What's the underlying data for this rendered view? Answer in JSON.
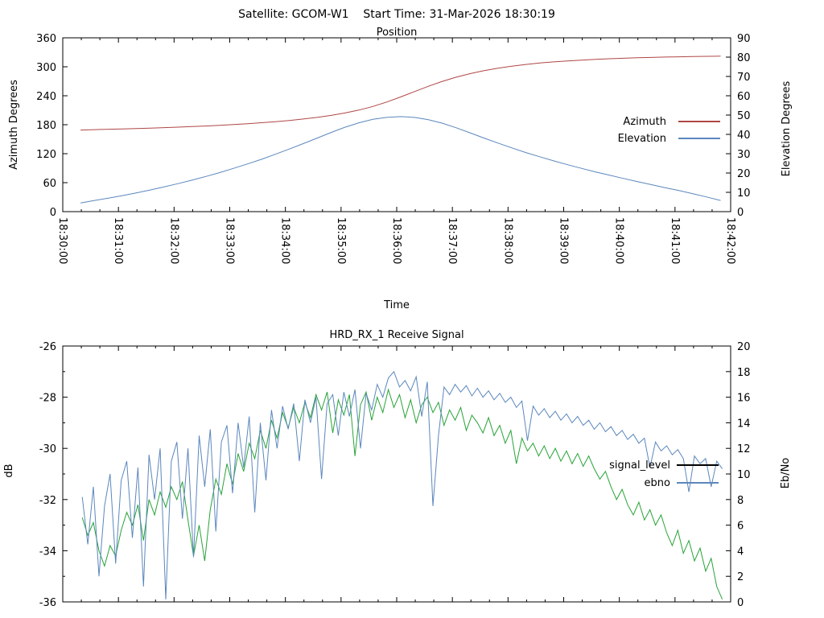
{
  "header": {
    "title": "Satellite: GCOM-W1    Start Time: 31-Mar-2026 18:30:19"
  },
  "chart_data": [
    {
      "type": "line",
      "title": "Position",
      "xlabel": "Time",
      "ylabel": "Azimuth Degrees",
      "y2label": "Elevation Degrees",
      "x_tick_labels": [
        "18:30:00",
        "18:31:00",
        "18:32:00",
        "18:33:00",
        "18:34:00",
        "18:35:00",
        "18:36:00",
        "18:37:00",
        "18:38:00",
        "18:39:00",
        "18:40:00",
        "18:41:00",
        "18:42:00"
      ],
      "x_range_minutes": [
        0,
        12
      ],
      "x_minor_per_major": 3,
      "y_range": [
        0,
        360
      ],
      "y_tick_step": 60,
      "y2_range": [
        0,
        90
      ],
      "y2_tick_step": 10,
      "grid": false,
      "legend_position": "right-middle",
      "legend": [
        {
          "label": "Azimuth",
          "color": "#b04646"
        },
        {
          "label": "Elevation",
          "color": "#5b87bd"
        }
      ],
      "series": [
        {
          "name": "Azimuth",
          "axis": "y1",
          "color": "#b04646",
          "t0": 0.32,
          "dt": 0.25,
          "values": [
            169.0,
            169.8,
            170.6,
            171.3,
            172.1,
            173.0,
            174.0,
            175.0,
            176.2,
            177.4,
            178.8,
            180.4,
            182.2,
            184.2,
            186.4,
            188.9,
            191.8,
            195.2,
            199.3,
            204.3,
            210.4,
            217.9,
            227.0,
            237.5,
            248.7,
            259.7,
            269.8,
            278.5,
            285.9,
            292.1,
            297.2,
            301.4,
            304.9,
            307.8,
            310.2,
            312.2,
            313.9,
            315.4,
            316.6,
            317.7,
            318.6,
            319.4,
            320.1,
            320.7,
            321.2,
            321.6,
            322.0
          ]
        },
        {
          "name": "Elevation",
          "axis": "y2",
          "color": "#5b87bd",
          "t0": 0.32,
          "dt": 0.25,
          "values": [
            4.5,
            5.8,
            7.0,
            8.3,
            9.7,
            11.2,
            12.8,
            14.5,
            16.3,
            18.2,
            20.2,
            22.4,
            24.7,
            27.1,
            29.7,
            32.4,
            35.2,
            38.1,
            41.0,
            43.7,
            46.0,
            47.8,
            48.8,
            49.2,
            48.8,
            47.6,
            45.8,
            43.4,
            40.8,
            38.1,
            35.5,
            33.0,
            30.6,
            28.4,
            26.3,
            24.3,
            22.4,
            20.6,
            18.9,
            17.2,
            15.6,
            14.0,
            12.4,
            10.9,
            9.3,
            7.6,
            5.8
          ]
        }
      ]
    },
    {
      "type": "line",
      "title": "HRD_RX_1 Receive Signal",
      "xlabel": "",
      "ylabel": "dB",
      "y2label": "Eb/No",
      "x_tick_labels": [],
      "x_range_minutes": [
        0,
        12
      ],
      "x_minor_per_major": 3,
      "y_range": [
        -36,
        -26
      ],
      "y_tick_step": 2,
      "y_minor_step": 1,
      "y2_range": [
        0,
        20
      ],
      "y2_tick_step": 2,
      "grid": false,
      "legend_position": "right-middle",
      "legend": [
        {
          "label": "signal_level",
          "color": "#000000"
        },
        {
          "label": "ebno",
          "color": "#5b87bd"
        }
      ],
      "series": [
        {
          "name": "signal_level",
          "axis": "y1",
          "color": "#27a337",
          "t0": 0.35,
          "dt": 0.1,
          "values": [
            -32.7,
            -33.4,
            -32.9,
            -34.0,
            -34.6,
            -33.8,
            -34.2,
            -33.2,
            -32.5,
            -33.0,
            -32.2,
            -33.6,
            -32.0,
            -32.6,
            -31.7,
            -32.3,
            -31.5,
            -32.0,
            -31.3,
            -32.8,
            -34.2,
            -33.0,
            -34.4,
            -32.4,
            -31.2,
            -31.8,
            -30.6,
            -31.4,
            -30.2,
            -30.9,
            -29.8,
            -30.4,
            -29.3,
            -30.0,
            -28.9,
            -29.6,
            -28.6,
            -29.2,
            -28.4,
            -29.0,
            -28.2,
            -28.8,
            -27.9,
            -28.5,
            -27.8,
            -29.4,
            -28.1,
            -28.7,
            -27.9,
            -30.3,
            -28.3,
            -27.8,
            -28.9,
            -28.0,
            -28.6,
            -27.7,
            -28.4,
            -27.9,
            -28.8,
            -28.1,
            -29.0,
            -28.3,
            -28.0,
            -28.6,
            -28.2,
            -29.1,
            -28.5,
            -28.9,
            -28.4,
            -29.3,
            -28.7,
            -29.0,
            -29.4,
            -28.8,
            -29.5,
            -29.1,
            -29.8,
            -29.3,
            -30.6,
            -29.6,
            -30.1,
            -29.8,
            -30.3,
            -29.9,
            -30.4,
            -30.0,
            -30.5,
            -30.1,
            -30.6,
            -30.2,
            -30.7,
            -30.3,
            -30.8,
            -31.2,
            -30.9,
            -31.5,
            -32.0,
            -31.6,
            -32.2,
            -32.6,
            -32.1,
            -32.8,
            -32.4,
            -33.0,
            -32.6,
            -33.3,
            -33.8,
            -33.2,
            -34.1,
            -33.6,
            -34.4,
            -33.9,
            -34.8,
            -34.3,
            -35.4,
            -35.9
          ]
        },
        {
          "name": "ebno",
          "axis": "y2",
          "color": "#5b87bd",
          "t0": 0.35,
          "dt": 0.1,
          "values": [
            8.2,
            4.5,
            9.0,
            2.0,
            7.5,
            10.0,
            3.0,
            9.5,
            11.0,
            5.0,
            10.5,
            1.2,
            11.5,
            8.0,
            12.0,
            0.2,
            11.0,
            12.5,
            6.5,
            12.0,
            3.5,
            13.0,
            9.0,
            13.5,
            5.5,
            12.5,
            13.8,
            8.5,
            14.0,
            10.5,
            14.5,
            7.0,
            14.0,
            9.5,
            15.0,
            12.0,
            15.3,
            13.5,
            15.5,
            11.0,
            15.8,
            14.0,
            16.0,
            9.6,
            15.5,
            16.2,
            13.0,
            16.4,
            14.5,
            16.6,
            12.0,
            16.3,
            15.0,
            17.0,
            16.0,
            17.5,
            18.0,
            16.8,
            17.3,
            16.5,
            17.6,
            14.5,
            17.2,
            7.5,
            13.0,
            16.8,
            16.2,
            17.0,
            16.4,
            16.9,
            16.1,
            16.7,
            16.0,
            16.5,
            15.8,
            16.3,
            15.6,
            16.0,
            15.2,
            15.7,
            12.6,
            15.3,
            14.6,
            15.1,
            14.4,
            14.9,
            14.2,
            14.7,
            14.0,
            14.5,
            13.8,
            14.2,
            13.5,
            14.0,
            13.3,
            13.7,
            13.0,
            13.4,
            12.7,
            13.1,
            12.4,
            12.8,
            10.5,
            12.5,
            11.8,
            12.2,
            11.5,
            11.9,
            11.2,
            8.6,
            11.4,
            10.8,
            11.2,
            9.0,
            11.0,
            10.4
          ]
        }
      ]
    }
  ]
}
